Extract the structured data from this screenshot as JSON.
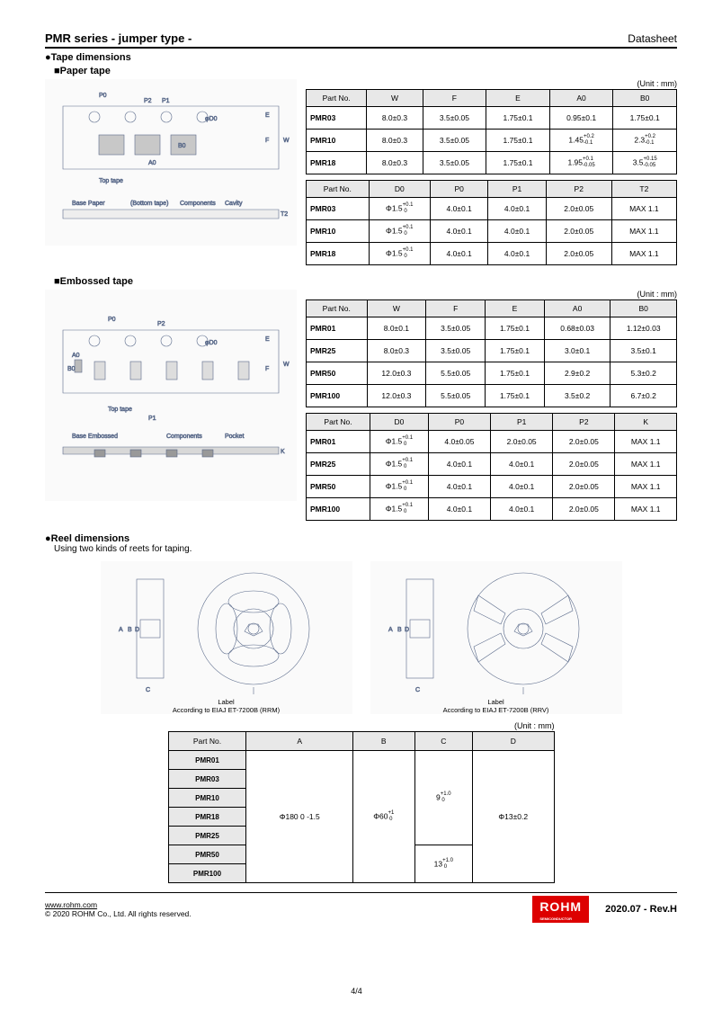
{
  "header": {
    "left": "PMR series - jumper type -",
    "right": "Datasheet"
  },
  "s1": {
    "title": "●Tape dimensions",
    "sub1": "■Paper tape",
    "sub2": "■Embossed tape"
  },
  "unit": "(Unit : mm)",
  "t1": {
    "cols": [
      "Part No.",
      "W",
      "F",
      "E",
      "A0",
      "B0"
    ],
    "rows": [
      [
        "PMR03",
        "8.0±0.3",
        "3.5±0.05",
        "1.75±0.1",
        "0.95±0.1",
        "1.75±0.1"
      ],
      [
        "PMR10",
        "8.0±0.3",
        "3.5±0.05",
        "1.75±0.1",
        "1.45 +0.2 -0.1",
        "2.3 +0.2 -0.1"
      ],
      [
        "PMR18",
        "8.0±0.3",
        "3.5±0.05",
        "1.75±0.1",
        "1.95 +0.1 -0.05",
        "3.5 +0.15 -0.05"
      ]
    ]
  },
  "t2": {
    "cols": [
      "Part No.",
      "D0",
      "P0",
      "P1",
      "P2",
      "T2"
    ],
    "rows": [
      [
        "PMR03",
        "Φ1.5 +0.1 0",
        "4.0±0.1",
        "4.0±0.1",
        "2.0±0.05",
        "MAX 1.1"
      ],
      [
        "PMR10",
        "Φ1.5 +0.1 0",
        "4.0±0.1",
        "4.0±0.1",
        "2.0±0.05",
        "MAX 1.1"
      ],
      [
        "PMR18",
        "Φ1.5 +0.1 0",
        "4.0±0.1",
        "4.0±0.1",
        "2.0±0.05",
        "MAX 1.1"
      ]
    ]
  },
  "t3": {
    "cols": [
      "Part No.",
      "W",
      "F",
      "E",
      "A0",
      "B0"
    ],
    "rows": [
      [
        "PMR01",
        "8.0±0.1",
        "3.5±0.05",
        "1.75±0.1",
        "0.68±0.03",
        "1.12±0.03"
      ],
      [
        "PMR25",
        "8.0±0.3",
        "3.5±0.05",
        "1.75±0.1",
        "3.0±0.1",
        "3.5±0.1"
      ],
      [
        "PMR50",
        "12.0±0.3",
        "5.5±0.05",
        "1.75±0.1",
        "2.9±0.2",
        "5.3±0.2"
      ],
      [
        "PMR100",
        "12.0±0.3",
        "5.5±0.05",
        "1.75±0.1",
        "3.5±0.2",
        "6.7±0.2"
      ]
    ]
  },
  "t4": {
    "cols": [
      "Part No.",
      "D0",
      "P0",
      "P1",
      "P2",
      "K"
    ],
    "rows": [
      [
        "PMR01",
        "Φ1.5 +0.1 0",
        "4.0±0.05",
        "2.0±0.05",
        "2.0±0.05",
        "MAX 1.1"
      ],
      [
        "PMR25",
        "Φ1.5 +0.1 0",
        "4.0±0.1",
        "4.0±0.1",
        "2.0±0.05",
        "MAX 1.1"
      ],
      [
        "PMR50",
        "Φ1.5 +0.1 0",
        "4.0±0.1",
        "4.0±0.1",
        "2.0±0.05",
        "MAX 1.1"
      ],
      [
        "PMR100",
        "Φ1.5 +0.1 0",
        "4.0±0.1",
        "4.0±0.1",
        "2.0±0.05",
        "MAX 1.1"
      ]
    ]
  },
  "s2": {
    "title": "●Reel dimensions",
    "sub": "Using two kinds of reets for taping."
  },
  "reel": {
    "lbl1": "Label\nAccording to EIAJ ET-7200B (RRM)",
    "lbl2": "Label\nAccording to EIAJ ET-7200B (RRV)"
  },
  "t5": {
    "cols": [
      "Part No.",
      "A",
      "B",
      "C",
      "D"
    ],
    "parts": [
      "PMR01",
      "PMR03",
      "PMR10",
      "PMR18",
      "PMR25",
      "PMR50",
      "PMR100"
    ],
    "a": "Φ180 0 -1.5",
    "b": "Φ60 +1 0",
    "c1": "9 +1.0 0",
    "c2": "13 +1.0 0",
    "d": "Φ13±0.2"
  },
  "footer": {
    "url": "www.rohm.com",
    "copy": "© 2020 ROHM Co., Ltd. All rights reserved.",
    "page": "4/4",
    "rev": "2020.07  -  Rev.H",
    "logo": "ROHM",
    "logosub": "SEMICONDUCTOR"
  }
}
